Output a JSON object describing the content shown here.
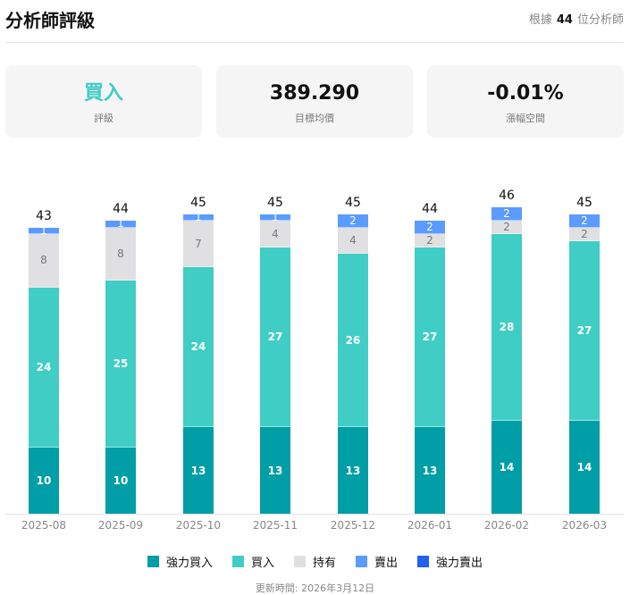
{
  "header": {
    "title": "分析師評級",
    "meta_prefix": "根據",
    "analyst_count": "44",
    "meta_suffix": "位分析師"
  },
  "cards": [
    {
      "value": "買入",
      "label": "評級",
      "color": "#3fcdc5"
    },
    {
      "value": "389.290",
      "label": "目標均價",
      "color": "#111111"
    },
    {
      "value": "-0.01%",
      "label": "漲幅空間",
      "color": "#111111"
    }
  ],
  "chart_data": {
    "type": "bar",
    "stacked": true,
    "categories": [
      "2025-08",
      "2025-09",
      "2025-10",
      "2025-11",
      "2025-12",
      "2026-01",
      "2026-02",
      "2026-03"
    ],
    "series": [
      {
        "name": "強力買入",
        "color": "#009ea6",
        "values": [
          10,
          10,
          13,
          13,
          13,
          13,
          14,
          14
        ]
      },
      {
        "name": "買入",
        "color": "#3fcdc5",
        "values": [
          24,
          25,
          24,
          27,
          26,
          27,
          28,
          27
        ]
      },
      {
        "name": "持有",
        "color": "#e0e0e3",
        "values": [
          8,
          8,
          7,
          4,
          4,
          2,
          2,
          2
        ]
      },
      {
        "name": "賣出",
        "color": "#5b9bff",
        "values": [
          1,
          1,
          1,
          1,
          2,
          2,
          2,
          2
        ]
      },
      {
        "name": "強力賣出",
        "color": "#2461f2",
        "values": [
          0,
          0,
          0,
          0,
          0,
          0,
          0,
          0
        ]
      }
    ],
    "totals": [
      43,
      44,
      45,
      45,
      45,
      44,
      46,
      45
    ],
    "legend_position": "bottom"
  },
  "footer": {
    "updated": "更新時間: 2026年3月12日"
  }
}
